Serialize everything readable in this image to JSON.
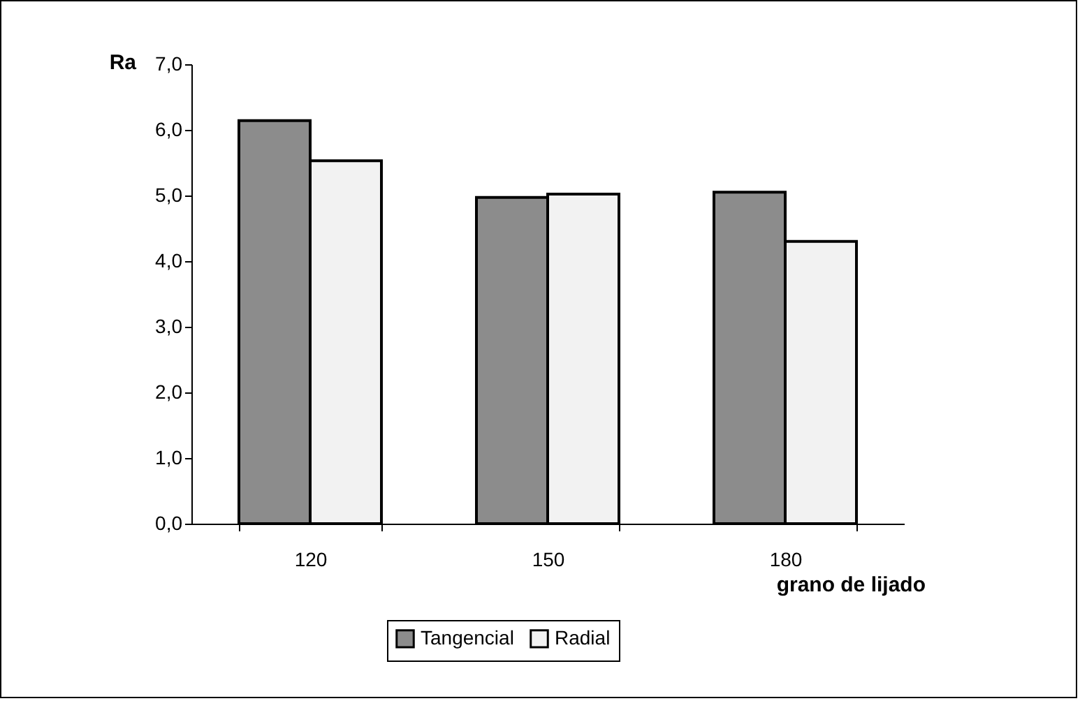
{
  "chart_data": {
    "type": "bar",
    "xlabel": "grano de lijado",
    "ylabel": "Ra",
    "categories": [
      "120",
      "150",
      "180"
    ],
    "series": [
      {
        "name": "Tangencial",
        "color": "#8c8c8c",
        "values": [
          6.14,
          4.97,
          5.05
        ]
      },
      {
        "name": "Radial",
        "color": "#f2f2f2",
        "values": [
          5.53,
          5.02,
          4.3
        ]
      }
    ],
    "ylim": [
      0,
      7
    ],
    "yticks": [
      {
        "value": 0,
        "label": "0,0"
      },
      {
        "value": 1,
        "label": "1,0"
      },
      {
        "value": 2,
        "label": "2,0"
      },
      {
        "value": 3,
        "label": "3,0"
      },
      {
        "value": 4,
        "label": "4,0"
      },
      {
        "value": 5,
        "label": "5,0"
      },
      {
        "value": 6,
        "label": "6,0"
      },
      {
        "value": 7,
        "label": "7,0"
      }
    ],
    "grid": false,
    "legend": "bottom"
  }
}
